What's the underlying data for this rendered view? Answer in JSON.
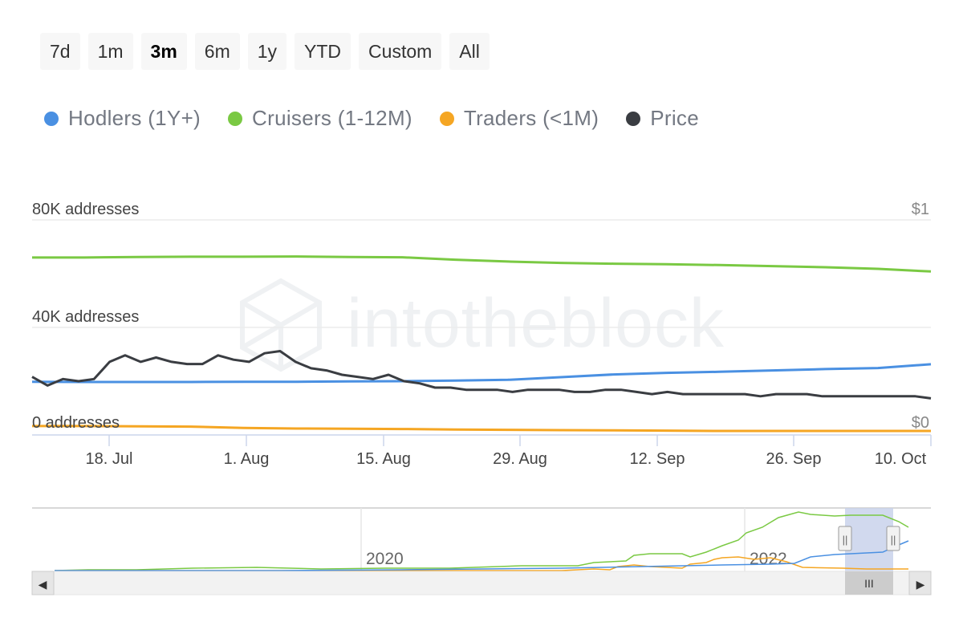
{
  "range_selector": {
    "buttons": [
      "7d",
      "1m",
      "3m",
      "6m",
      "1y",
      "YTD",
      "Custom",
      "All"
    ],
    "selected": "3m"
  },
  "legend": [
    {
      "label": "Hodlers (1Y+)",
      "color": "#4a90e2"
    },
    {
      "label": "Cruisers (1-12M)",
      "color": "#7ac943"
    },
    {
      "label": "Traders (<1M)",
      "color": "#f5a623"
    },
    {
      "label": "Price",
      "color": "#3a3d42"
    }
  ],
  "watermark": {
    "text": "intotheblock"
  },
  "chart_data": {
    "type": "line",
    "title": "",
    "x_tick_labels": [
      "18. Jul",
      "1. Aug",
      "15. Aug",
      "29. Aug",
      "12. Sep",
      "26. Sep",
      "10. Oct"
    ],
    "y_axis_left": {
      "labels": [
        "0 addresses",
        "40K addresses",
        "80K addresses"
      ],
      "ylim": [
        0,
        80000
      ]
    },
    "y_axis_right": {
      "labels": [
        "$0",
        "$1"
      ],
      "ylim": [
        0,
        1
      ]
    },
    "grid": true,
    "series": [
      {
        "name": "Cruisers (1-12M)",
        "axis": "left",
        "color": "#7ac943",
        "values": [
          66000,
          66000,
          66200,
          66300,
          66300,
          66400,
          66200,
          66100,
          65200,
          64500,
          64000,
          63700,
          63500,
          63200,
          62800,
          62400,
          61800,
          60800
        ]
      },
      {
        "name": "Hodlers (1Y+)",
        "axis": "left",
        "color": "#4a90e2",
        "values": [
          19800,
          19700,
          19700,
          19700,
          19800,
          19800,
          19900,
          20000,
          20200,
          20500,
          21500,
          22500,
          23100,
          23500,
          24000,
          24500,
          24900,
          26300
        ]
      },
      {
        "name": "Traders (<1M)",
        "axis": "left",
        "color": "#f5a623",
        "values": [
          3300,
          3300,
          3200,
          3100,
          2600,
          2400,
          2300,
          2200,
          2000,
          1900,
          1800,
          1700,
          1600,
          1500,
          1500,
          1500,
          1500,
          1500
        ]
      },
      {
        "name": "Price",
        "axis": "right",
        "color": "#3a3d42",
        "values": [
          0.27,
          0.23,
          0.26,
          0.25,
          0.26,
          0.34,
          0.37,
          0.34,
          0.36,
          0.34,
          0.33,
          0.33,
          0.37,
          0.35,
          0.34,
          0.38,
          0.39,
          0.34,
          0.31,
          0.3,
          0.28,
          0.27,
          0.26,
          0.28,
          0.25,
          0.24,
          0.22,
          0.22,
          0.21,
          0.21,
          0.21,
          0.2,
          0.21,
          0.21,
          0.21,
          0.2,
          0.2,
          0.21,
          0.21,
          0.2,
          0.19,
          0.2,
          0.19,
          0.19,
          0.19,
          0.19,
          0.19,
          0.18,
          0.19,
          0.19,
          0.19,
          0.18,
          0.18,
          0.18,
          0.18,
          0.18,
          0.18,
          0.18,
          0.17
        ]
      }
    ]
  },
  "navigator": {
    "year_labels": [
      "2020",
      "2022"
    ],
    "scroll_left_label": "◀",
    "scroll_right_label": "▶",
    "scroll_thumb_label": "III",
    "handle_label": "||"
  }
}
